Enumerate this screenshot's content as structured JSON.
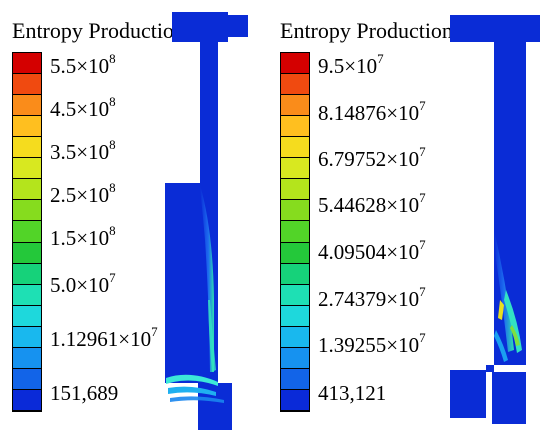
{
  "panels": [
    {
      "title": "Entropy Production",
      "labels": [
        {
          "mantissa": "5.5×10",
          "exp": "8"
        },
        {
          "mantissa": "4.5×10",
          "exp": "8"
        },
        {
          "mantissa": "3.5×10",
          "exp": "8"
        },
        {
          "mantissa": "2.5×10",
          "exp": "8"
        },
        {
          "mantissa": "1.5×10",
          "exp": "8"
        },
        {
          "mantissa": "5.0×10",
          "exp": "7"
        },
        {
          "mantissa": "1.12961×10",
          "exp": "7"
        },
        {
          "mantissa": "151,689",
          "exp": ""
        }
      ]
    },
    {
      "title": "Entropy Production",
      "labels": [
        {
          "mantissa": "9.5×10",
          "exp": "7"
        },
        {
          "mantissa": "8.14876×10",
          "exp": "7"
        },
        {
          "mantissa": "6.79752×10",
          "exp": "7"
        },
        {
          "mantissa": "5.44628×10",
          "exp": "7"
        },
        {
          "mantissa": "4.09504×10",
          "exp": "7"
        },
        {
          "mantissa": "2.74379×10",
          "exp": "7"
        },
        {
          "mantissa": "1.39255×10",
          "exp": "7"
        },
        {
          "mantissa": "413,121",
          "exp": ""
        }
      ]
    }
  ],
  "colorbar": [
    "#d40000",
    "#f04a10",
    "#fa8c1a",
    "#ffbf1f",
    "#f5dc1e",
    "#d8e820",
    "#b4e41c",
    "#86dc1e",
    "#52d428",
    "#24c83a",
    "#16d27a",
    "#1ee0b4",
    "#1ed8dc",
    "#19b8ee",
    "#1692f0",
    "#1264e8",
    "#0a2ad8"
  ],
  "colors": {
    "field_base": "#0a2cd6",
    "field_mid": "#1d6cf0",
    "field_hot": "#2ee0b0"
  }
}
